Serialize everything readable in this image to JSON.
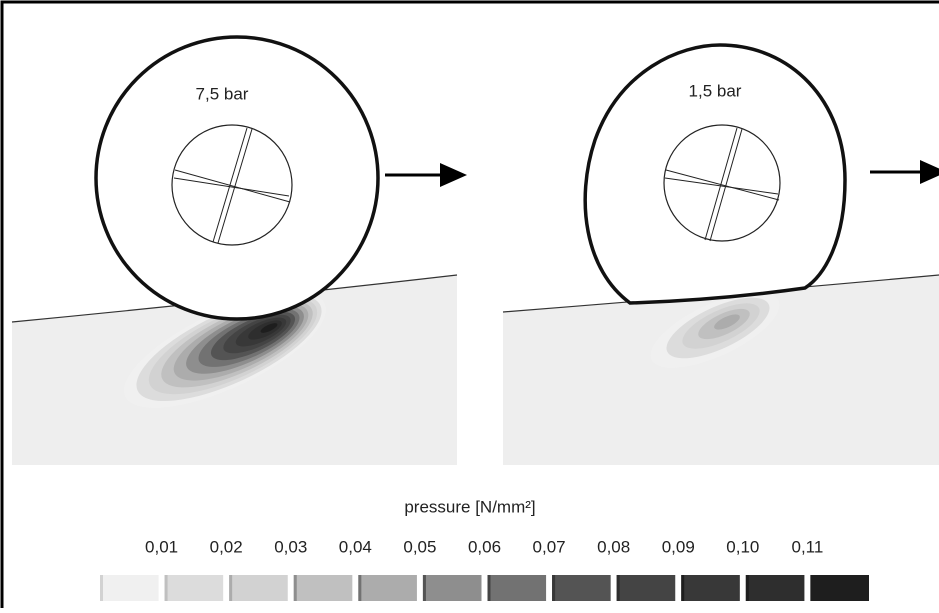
{
  "panels": [
    {
      "label": "7,5 bar"
    },
    {
      "label": "1,5 bar"
    }
  ],
  "legend": {
    "title": "pressure [N/mm²]",
    "labels": [
      "0,01",
      "0,02",
      "0,03",
      "0,04",
      "0,05",
      "0,06",
      "0,07",
      "0,08",
      "0,09",
      "0,10",
      "0,11"
    ],
    "colors": [
      "#f0f0f0",
      "#dcdcdc",
      "#d2d2d2",
      "#c0c0c0",
      "#acacac",
      "#8e8e8e",
      "#727272",
      "#545454",
      "#444444",
      "#383838",
      "#2e2e2e",
      "#1e1e1e"
    ]
  }
}
